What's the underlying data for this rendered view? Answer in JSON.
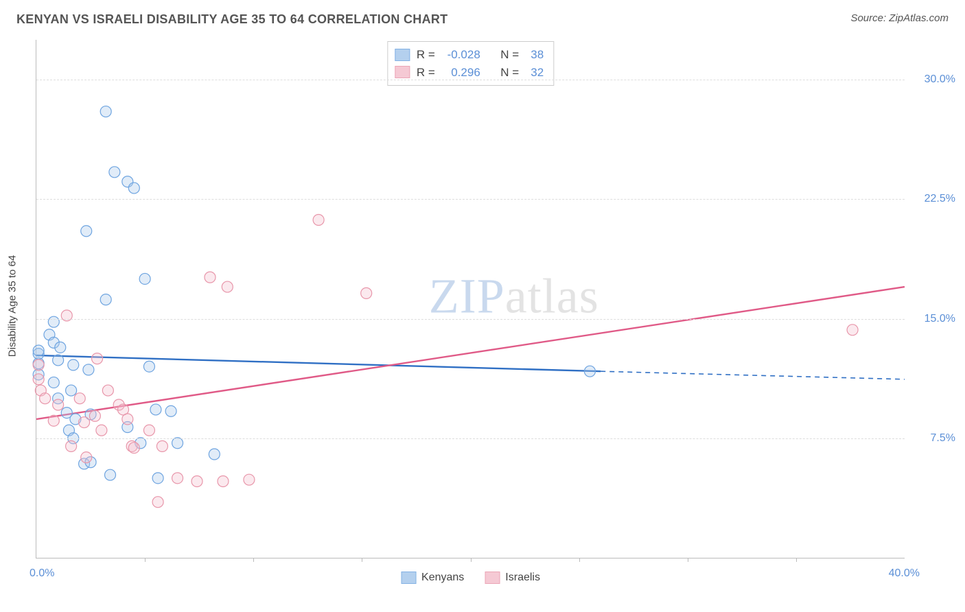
{
  "title": "KENYAN VS ISRAELI DISABILITY AGE 35 TO 64 CORRELATION CHART",
  "source": "Source: ZipAtlas.com",
  "ylabel": "Disability Age 35 to 64",
  "watermark_zip": "ZIP",
  "watermark_atlas": "atlas",
  "background_color": "#ffffff",
  "gridline_color": "#dddddd",
  "axis_color": "#bbbbbb",
  "text_color": "#555555",
  "value_color": "#5b8fd6",
  "chart": {
    "type": "scatter",
    "xlim": [
      0,
      40
    ],
    "ylim": [
      0,
      32.5
    ],
    "yticks": [
      {
        "value": 7.5,
        "label": "7.5%"
      },
      {
        "value": 15.0,
        "label": "15.0%"
      },
      {
        "value": 22.5,
        "label": "22.5%"
      },
      {
        "value": 30.0,
        "label": "30.0%"
      }
    ],
    "xticks_minor": [
      5,
      10,
      15,
      20,
      25,
      30,
      35
    ],
    "xaxis_min_label": "0.0%",
    "xaxis_max_label": "40.0%",
    "marker_radius": 8,
    "marker_stroke_width": 1.2,
    "marker_fill_opacity": 0.35,
    "regression_line_width": 2.4,
    "series": [
      {
        "name": "Kenyans",
        "color_stroke": "#6ea4e0",
        "color_fill": "#a8c8ec",
        "line_color": "#2f6fc4",
        "regression": {
          "x1": 0,
          "y1": 12.7,
          "x2_solid": 26,
          "y2_solid": 11.7,
          "x2": 40,
          "y2": 11.2
        },
        "R": "-0.028",
        "N": "38",
        "points": [
          {
            "x": 0.1,
            "y": 12.2
          },
          {
            "x": 0.1,
            "y": 12.8
          },
          {
            "x": 0.1,
            "y": 11.5
          },
          {
            "x": 0.1,
            "y": 13.0
          },
          {
            "x": 0.6,
            "y": 14.0
          },
          {
            "x": 0.8,
            "y": 11.0
          },
          {
            "x": 0.8,
            "y": 13.5
          },
          {
            "x": 0.8,
            "y": 14.8
          },
          {
            "x": 1.0,
            "y": 10.0
          },
          {
            "x": 1.0,
            "y": 12.4
          },
          {
            "x": 1.1,
            "y": 13.2
          },
          {
            "x": 1.4,
            "y": 9.1
          },
          {
            "x": 1.5,
            "y": 8.0
          },
          {
            "x": 1.6,
            "y": 10.5
          },
          {
            "x": 1.7,
            "y": 7.5
          },
          {
            "x": 1.7,
            "y": 12.1
          },
          {
            "x": 1.8,
            "y": 8.7
          },
          {
            "x": 2.2,
            "y": 5.9
          },
          {
            "x": 2.3,
            "y": 20.5
          },
          {
            "x": 2.4,
            "y": 11.8
          },
          {
            "x": 2.5,
            "y": 6.0
          },
          {
            "x": 2.5,
            "y": 9.0
          },
          {
            "x": 3.2,
            "y": 28.0
          },
          {
            "x": 3.2,
            "y": 16.2
          },
          {
            "x": 3.4,
            "y": 5.2
          },
          {
            "x": 3.6,
            "y": 24.2
          },
          {
            "x": 4.2,
            "y": 8.2
          },
          {
            "x": 4.2,
            "y": 23.6
          },
          {
            "x": 4.5,
            "y": 23.2
          },
          {
            "x": 4.8,
            "y": 7.2
          },
          {
            "x": 5.0,
            "y": 17.5
          },
          {
            "x": 5.2,
            "y": 12.0
          },
          {
            "x": 5.5,
            "y": 9.3
          },
          {
            "x": 5.6,
            "y": 5.0
          },
          {
            "x": 6.2,
            "y": 9.2
          },
          {
            "x": 6.5,
            "y": 7.2
          },
          {
            "x": 8.2,
            "y": 6.5
          },
          {
            "x": 25.5,
            "y": 11.7
          }
        ]
      },
      {
        "name": "Israelis",
        "color_stroke": "#e896aa",
        "color_fill": "#f4c0cd",
        "line_color": "#e05a87",
        "regression": {
          "x1": 0,
          "y1": 8.7,
          "x2_solid": 40,
          "y2_solid": 17.0,
          "x2": 40,
          "y2": 17.0
        },
        "R": "0.296",
        "N": "32",
        "points": [
          {
            "x": 0.1,
            "y": 12.1
          },
          {
            "x": 0.1,
            "y": 11.2
          },
          {
            "x": 0.2,
            "y": 10.5
          },
          {
            "x": 0.4,
            "y": 10.0
          },
          {
            "x": 0.8,
            "y": 8.6
          },
          {
            "x": 1.0,
            "y": 9.6
          },
          {
            "x": 1.4,
            "y": 15.2
          },
          {
            "x": 1.6,
            "y": 7.0
          },
          {
            "x": 2.0,
            "y": 10.0
          },
          {
            "x": 2.2,
            "y": 8.5
          },
          {
            "x": 2.3,
            "y": 6.3
          },
          {
            "x": 2.7,
            "y": 8.9
          },
          {
            "x": 2.8,
            "y": 12.5
          },
          {
            "x": 3.0,
            "y": 8.0
          },
          {
            "x": 3.3,
            "y": 10.5
          },
          {
            "x": 3.8,
            "y": 9.6
          },
          {
            "x": 4.0,
            "y": 9.3
          },
          {
            "x": 4.2,
            "y": 8.7
          },
          {
            "x": 4.4,
            "y": 7.0
          },
          {
            "x": 4.5,
            "y": 6.9
          },
          {
            "x": 5.2,
            "y": 8.0
          },
          {
            "x": 5.6,
            "y": 3.5
          },
          {
            "x": 5.8,
            "y": 7.0
          },
          {
            "x": 6.5,
            "y": 5.0
          },
          {
            "x": 7.4,
            "y": 4.8
          },
          {
            "x": 8.0,
            "y": 17.6
          },
          {
            "x": 8.6,
            "y": 4.8
          },
          {
            "x": 8.8,
            "y": 17.0
          },
          {
            "x": 9.8,
            "y": 4.9
          },
          {
            "x": 13.0,
            "y": 21.2
          },
          {
            "x": 15.2,
            "y": 16.6
          },
          {
            "x": 37.6,
            "y": 14.3
          }
        ]
      }
    ]
  },
  "stats_legend_label_R": "R =",
  "stats_legend_label_N": "N ="
}
